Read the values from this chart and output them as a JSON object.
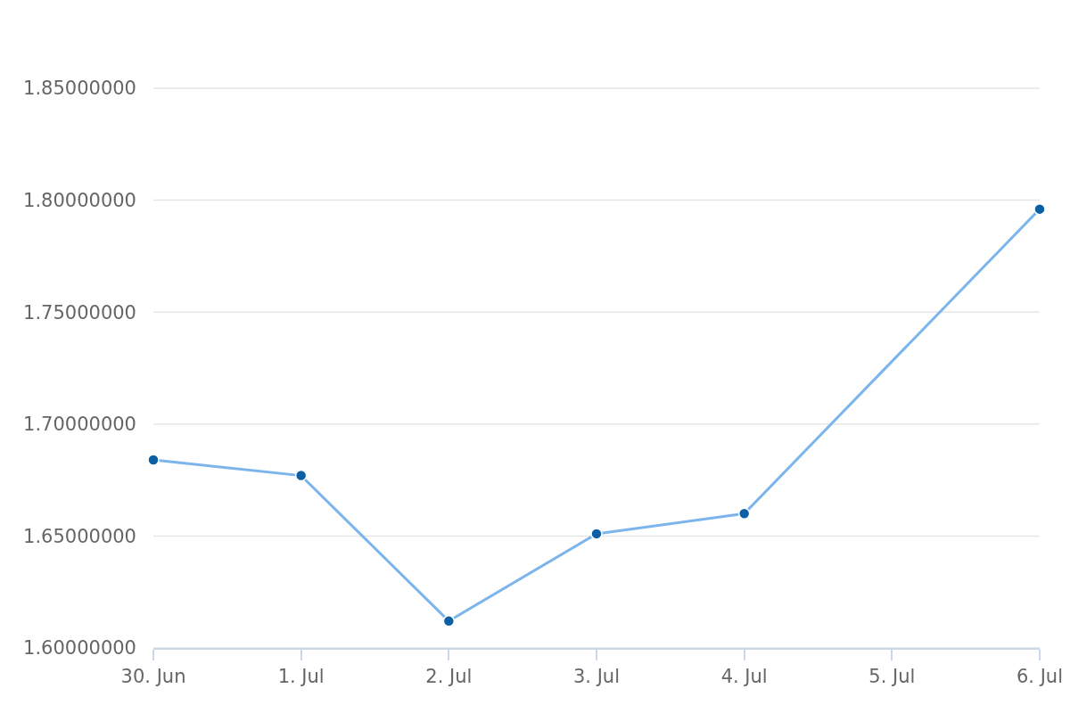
{
  "chart_data": {
    "type": "line",
    "x": [
      "--06-30",
      "--07-01",
      "--07-02",
      "--07-03",
      "--07-04",
      "--07-06"
    ],
    "series": [
      {
        "color": "#7cb5ec",
        "colors": [
          "#0b5fa5",
          "#0b5fa5",
          "#0b5fa5",
          "#0b5fa5",
          "#0b5fa5",
          "#0b5fa5"
        ],
        "values": [
          1.684,
          1.677,
          1.612,
          1.651,
          1.66,
          1.796
        ]
      }
    ],
    "xlim": [
      "--06-30",
      "--07-06"
    ],
    "xticks": [
      {
        "value": "--06-30",
        "label": "30. Jun"
      },
      {
        "value": "--07-01",
        "label": "1. Jul"
      },
      {
        "value": "--07-02",
        "label": "2. Jul"
      },
      {
        "value": "--07-03",
        "label": "3. Jul"
      },
      {
        "value": "--07-04",
        "label": "4. Jul"
      },
      {
        "value": "--07-05",
        "label": "5. Jul"
      },
      {
        "value": "--07-06",
        "label": "6. Jul"
      }
    ],
    "ylim": [
      1.6,
      1.85
    ],
    "yticks": [
      {
        "value": 1.6,
        "label": "1.60000000"
      },
      {
        "value": 1.65,
        "label": "1.65000000"
      },
      {
        "value": 1.7,
        "label": "1.70000000"
      },
      {
        "value": 1.75,
        "label": "1.75000000"
      },
      {
        "value": 1.8,
        "label": "1.80000000"
      },
      {
        "value": 1.85,
        "label": "1.85000000"
      }
    ],
    "grid": "y",
    "marker": "circle",
    "line_style": "solid"
  }
}
